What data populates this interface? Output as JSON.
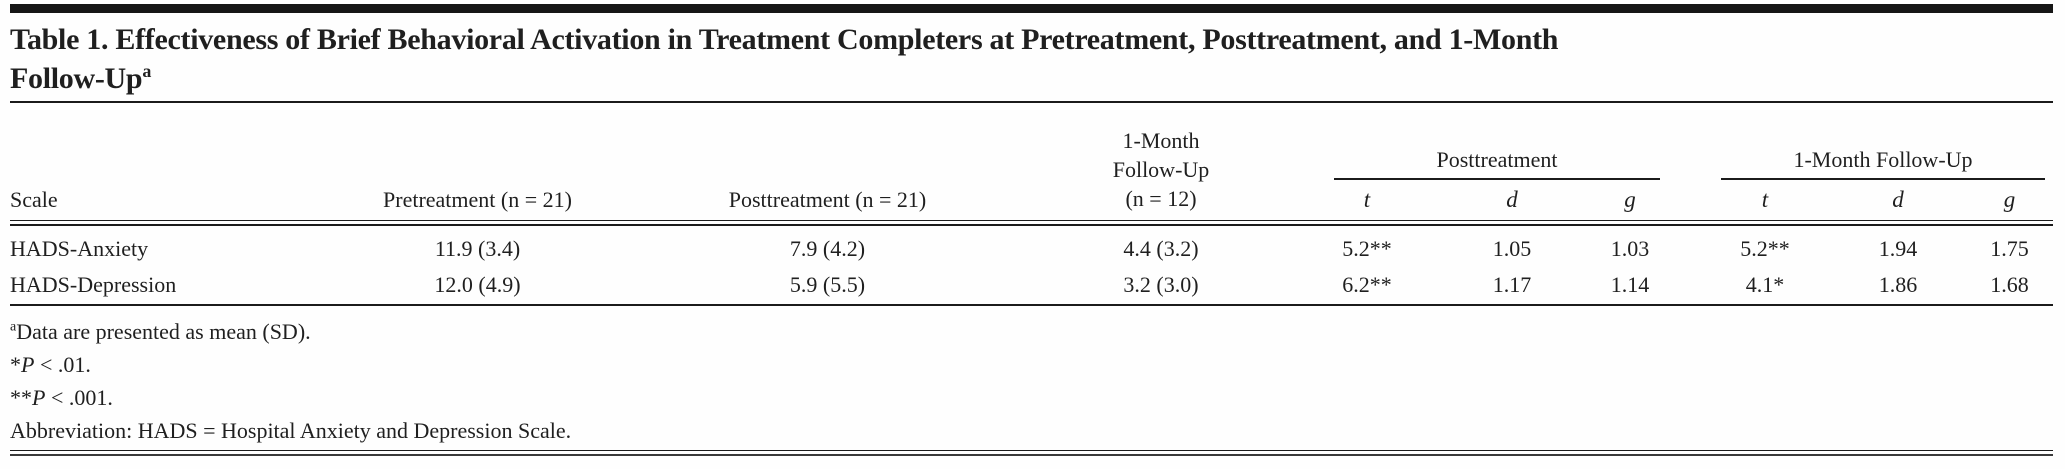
{
  "table": {
    "title": {
      "line1": "Table 1. Effectiveness of Brief Behavioral Activation in Treatment Completers at Pretreatment, Posttreatment, and 1-Month",
      "line2": "Follow-Up",
      "superscript": "a"
    },
    "columns": {
      "scale": "Scale",
      "pretreatment": "Pretreatment (n = 21)",
      "posttreatment": "Posttreatment (n = 21)",
      "followup_line1": "1-Month",
      "followup_line2": "Follow-Up",
      "followup_line3": "(n = 12)",
      "group_posttreatment": "Posttreatment",
      "group_followup": "1-Month Follow-Up",
      "t": "t",
      "d": "d",
      "g": "g"
    },
    "rows": [
      {
        "scale": "HADS-Anxiety",
        "pre": "11.9 (3.4)",
        "post": "7.9 (4.2)",
        "fu": "4.4 (3.2)",
        "post_t": "5.2**",
        "post_d": "1.05",
        "post_g": "1.03",
        "fu_t": "5.2**",
        "fu_d": "1.94",
        "fu_g": "1.75"
      },
      {
        "scale": "HADS-Depression",
        "pre": "12.0 (4.9)",
        "post": "5.9 (5.5)",
        "fu": "3.2 (3.0)",
        "post_t": "6.2**",
        "post_d": "1.17",
        "post_g": "1.14",
        "fu_t": "4.1*",
        "fu_d": "1.86",
        "fu_g": "1.68"
      }
    ],
    "footnotes": {
      "a_sup": "a",
      "a_text": "Data are presented as mean (SD).",
      "star1_prefix": "*",
      "star1_p": "P",
      "star1_rest": " < .01.",
      "star2_prefix": "**",
      "star2_p": "P",
      "star2_rest": " < .001.",
      "abbreviation": "Abbreviation: HADS = Hospital Anxiety and Depression Scale."
    },
    "colors": {
      "text": "#1f1f1f",
      "rule": "#1b1b1b",
      "top_bar": "#161616",
      "background": "#fefefe"
    }
  }
}
